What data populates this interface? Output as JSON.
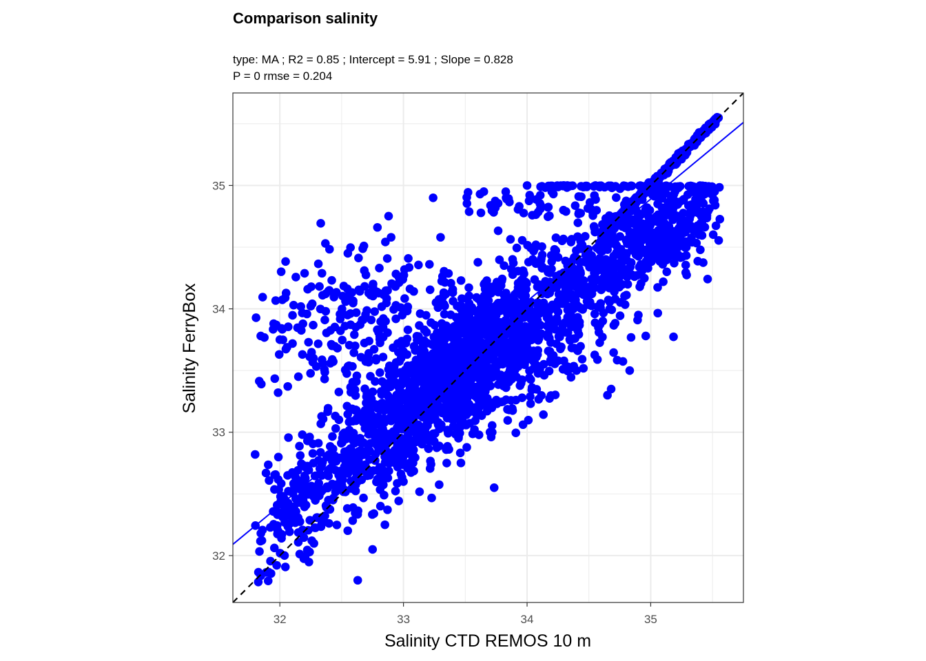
{
  "chart_data": {
    "type": "scatter",
    "title": "Comparison salinity",
    "subtitle_lines": [
      "type:  MA ; R2 =  0.85 ; Intercept = 5.91 ; Slope = 0.828",
      "P = 0 rmse = 0.204"
    ],
    "xlabel": "Salinity CTD REMOS 10 m",
    "ylabel": "Salinity FerryBox",
    "xlim": [
      31.62,
      35.75
    ],
    "ylim": [
      31.62,
      35.75
    ],
    "x_ticks": [
      "32",
      "33",
      "34",
      "35"
    ],
    "y_ticks": [
      "32",
      "33",
      "34",
      "35"
    ],
    "grid": true,
    "point_color": "#0000ff",
    "regression_line": {
      "intercept": 5.91,
      "slope": 0.828,
      "color": "#0000ff"
    },
    "identity_line": {
      "intercept": 0,
      "slope": 1,
      "style": "dashed",
      "color": "#000000"
    },
    "clusters": [
      {
        "name": "main",
        "cx": 33.4,
        "cy": 33.5,
        "sx": 0.55,
        "sy": 0.5,
        "rho": 0.86,
        "n": 1700
      },
      {
        "name": "upper-left",
        "cx": 32.6,
        "cy": 33.9,
        "sx": 0.45,
        "sy": 0.35,
        "rho": 0.3,
        "n": 220
      },
      {
        "name": "lower-right",
        "cx": 34.0,
        "cy": 33.6,
        "sx": 0.55,
        "sy": 0.45,
        "rho": 0.8,
        "n": 320
      },
      {
        "name": "low-tail",
        "cx": 32.15,
        "cy": 32.35,
        "sx": 0.2,
        "sy": 0.35,
        "rho": 0.7,
        "n": 130
      }
    ],
    "diagonal_band": {
      "x_from": 34.6,
      "x_to": 35.55,
      "n": 400
    },
    "top_cap": {
      "y": 35.0,
      "x_from": 34.1,
      "x_to": 35.5,
      "n": 90
    },
    "near_top": {
      "x_from": 33.5,
      "x_to": 34.6,
      "y_from": 34.75,
      "y_to": 34.95,
      "n": 45
    },
    "upper_right_mass": {
      "cx": 35.0,
      "cy": 34.6,
      "sx": 0.3,
      "sy": 0.22,
      "rho": 0.6,
      "n": 450
    },
    "sparse_points": [
      [
        31.8,
        32.82
      ],
      [
        31.85,
        33.39
      ],
      [
        31.95,
        33.88
      ],
      [
        32.55,
        34.45
      ],
      [
        32.68,
        34.51
      ],
      [
        32.9,
        34.58
      ],
      [
        33.24,
        34.9
      ],
      [
        33.3,
        34.58
      ],
      [
        33.65,
        34.95
      ],
      [
        33.83,
        34.9
      ],
      [
        34.0,
        35.0
      ],
      [
        34.2,
        34.95
      ],
      [
        34.3,
        35.0
      ],
      [
        34.65,
        33.3
      ],
      [
        34.68,
        33.35
      ],
      [
        34.83,
        33.5
      ],
      [
        34.9,
        33.95
      ],
      [
        34.96,
        33.78
      ],
      [
        35.13,
        34.3
      ],
      [
        32.0,
        33.75
      ],
      [
        32.15,
        33.45
      ],
      [
        32.4,
        34.15
      ],
      [
        32.75,
        32.05
      ],
      [
        32.85,
        32.25
      ],
      [
        32.63,
        31.8
      ],
      [
        33.0,
        32.6
      ],
      [
        33.35,
        32.75
      ],
      [
        33.7,
        33.2
      ],
      [
        33.7,
        33.0
      ],
      [
        34.4,
        33.5
      ]
    ]
  }
}
